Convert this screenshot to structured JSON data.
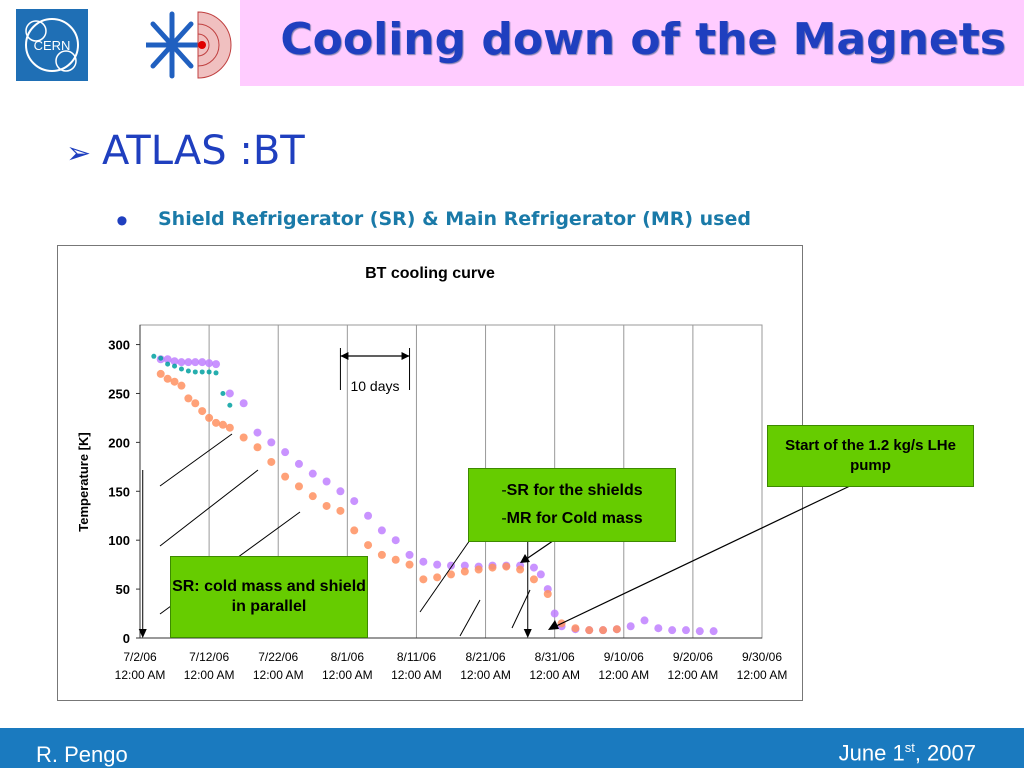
{
  "slide": {
    "title": "Cooling down of the Magnets",
    "heading": "ATLAS :BT",
    "bullet": "Shield Refrigerator (SR) & Main Refrigerator (MR) used",
    "logo_text": "CERN",
    "colors": {
      "title": "#1f3fbf",
      "title_bar": "#ffccff",
      "footer": "#1a7abf",
      "callout": "#66cc00"
    }
  },
  "chart_data": {
    "type": "scatter",
    "title": "BT cooling curve",
    "xlabel": "",
    "ylabel": "Temperature [K]",
    "ylim": [
      0,
      320
    ],
    "yticks": [
      0,
      50,
      100,
      150,
      200,
      250,
      300
    ],
    "xticks": [
      {
        "date": "7/2/06",
        "time": "12:00 AM"
      },
      {
        "date": "7/12/06",
        "time": "12:00 AM"
      },
      {
        "date": "7/22/06",
        "time": "12:00 AM"
      },
      {
        "date": "8/1/06",
        "time": "12:00 AM"
      },
      {
        "date": "8/11/06",
        "time": "12:00 AM"
      },
      {
        "date": "8/21/06",
        "time": "12:00 AM"
      },
      {
        "date": "8/31/06",
        "time": "12:00 AM"
      },
      {
        "date": "9/10/06",
        "time": "12:00 AM"
      },
      {
        "date": "9/20/06",
        "time": "12:00 AM"
      },
      {
        "date": "9/30/06",
        "time": "12:00 AM"
      }
    ],
    "xlim": [
      "7/2/06",
      "9/30/06"
    ],
    "grid": "vertical",
    "series": [
      {
        "color": "#c080ff",
        "x": [
          "7/5/06",
          "7/6/06",
          "7/7/06",
          "7/8/06",
          "7/9/06",
          "7/10/06",
          "7/11/06",
          "7/12/06",
          "7/13/06",
          "7/15/06",
          "7/17/06",
          "7/19/06",
          "7/21/06",
          "7/23/06",
          "7/25/06",
          "7/27/06",
          "7/29/06",
          "7/31/06",
          "8/2/06",
          "8/4/06",
          "8/6/06",
          "8/8/06",
          "8/10/06",
          "8/12/06",
          "8/14/06",
          "8/16/06",
          "8/18/06",
          "8/20/06",
          "8/22/06",
          "8/24/06",
          "8/26/06",
          "8/28/06",
          "8/29/06",
          "8/30/06",
          "8/31/06",
          "9/1/06",
          "9/3/06",
          "9/5/06",
          "9/7/06",
          "9/9/06",
          "9/11/06",
          "9/13/06",
          "9/15/06",
          "9/17/06",
          "9/19/06",
          "9/21/06",
          "9/23/06"
        ],
        "y": [
          285,
          285,
          283,
          282,
          282,
          282,
          282,
          281,
          280,
          250,
          240,
          210,
          200,
          190,
          178,
          168,
          160,
          150,
          140,
          125,
          110,
          100,
          85,
          78,
          75,
          74,
          74,
          73,
          74,
          74,
          74,
          72,
          65,
          50,
          25,
          12,
          9,
          8,
          8,
          9,
          12,
          18,
          10,
          8,
          8,
          7,
          7
        ]
      },
      {
        "color": "#ff9060",
        "x": [
          "7/5/06",
          "7/6/06",
          "7/7/06",
          "7/8/06",
          "7/9/06",
          "7/10/06",
          "7/11/06",
          "7/12/06",
          "7/13/06",
          "7/14/06",
          "7/15/06",
          "7/17/06",
          "7/19/06",
          "7/21/06",
          "7/23/06",
          "7/25/06",
          "7/27/06",
          "7/29/06",
          "7/31/06",
          "8/2/06",
          "8/4/06",
          "8/6/06",
          "8/8/06",
          "8/10/06",
          "8/12/06",
          "8/14/06",
          "8/16/06",
          "8/18/06",
          "8/20/06",
          "8/22/06",
          "8/24/06",
          "8/26/06",
          "8/28/06",
          "8/30/06",
          "9/1/06",
          "9/3/06",
          "9/5/06",
          "9/7/06",
          "9/9/06"
        ],
        "y": [
          270,
          265,
          262,
          258,
          245,
          240,
          232,
          225,
          220,
          218,
          215,
          205,
          195,
          180,
          165,
          155,
          145,
          135,
          130,
          110,
          95,
          85,
          80,
          75,
          60,
          62,
          65,
          68,
          70,
          72,
          73,
          70,
          60,
          45,
          15,
          10,
          8,
          8,
          9
        ]
      },
      {
        "color": "#00a0a0",
        "x": [
          "7/4/06",
          "7/5/06",
          "7/6/06",
          "7/7/06",
          "7/8/06",
          "7/9/06",
          "7/10/06",
          "7/11/06",
          "7/12/06",
          "7/13/06",
          "7/14/06",
          "7/15/06"
        ],
        "y": [
          288,
          286,
          280,
          278,
          275,
          273,
          272,
          272,
          272,
          271,
          250,
          238
        ]
      }
    ]
  },
  "annotations": {
    "ten_days": "10 days",
    "sr_parallel": "SR: cold mass and shield in parallel",
    "sr_shields": "SR for the shields",
    "mr_cold_mass": "MR for Cold mass",
    "dash": "-",
    "pump_start": "Start of the 1.2 kg/s LHe pump"
  },
  "footer": {
    "author": "R. Pengo",
    "date_main": "June 1",
    "date_sup": "st",
    "date_year": ", 2007"
  }
}
